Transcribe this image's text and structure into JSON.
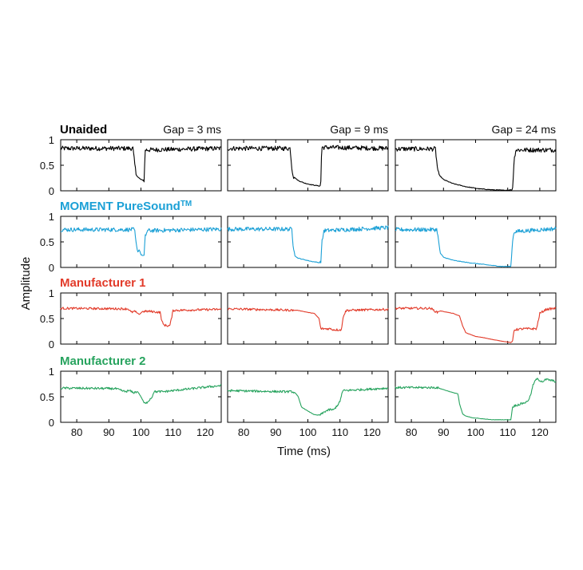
{
  "figure": {
    "xlabel": "Time (ms)",
    "ylabel": "Amplitude"
  },
  "columns": [
    {
      "label": "Gap = 3 ms",
      "gap_start": 98,
      "gap_end": 101
    },
    {
      "label": "Gap = 9 ms",
      "gap_start": 95,
      "gap_end": 104
    },
    {
      "label": "Gap = 24 ms",
      "gap_start": 88,
      "gap_end": 112
    }
  ],
  "rows": [
    {
      "label": "Unaided",
      "label_sup": "",
      "color": "#000000"
    },
    {
      "label": "MOMENT PureSound",
      "label_sup": "TM",
      "color": "#1ba0d6"
    },
    {
      "label": "Manufacturer 1",
      "label_sup": "",
      "color": "#e23b2a"
    },
    {
      "label": "Manufacturer 2",
      "label_sup": "",
      "color": "#27a35e"
    }
  ],
  "chart_data": {
    "type": "line",
    "layout": "4x3 small multiples",
    "xlim": [
      75,
      125
    ],
    "ylim": [
      0,
      1
    ],
    "xticks": [
      80,
      90,
      100,
      110,
      120
    ],
    "yticks": [
      0,
      0.5,
      1
    ],
    "ytick_labels": [
      "0",
      "0.5",
      "1"
    ],
    "grid": false,
    "panels": [
      {
        "row": 0,
        "col": 0,
        "series": "Unaided",
        "x": [
          75,
          97.5,
          98,
          98.5,
          99,
          100,
          101,
          101.3,
          125
        ],
        "y": [
          0.83,
          0.83,
          0.55,
          0.32,
          0.27,
          0.22,
          0.2,
          0.8,
          0.83
        ]
      },
      {
        "row": 0,
        "col": 1,
        "series": "Unaided",
        "x": [
          75,
          94.5,
          95,
          95.5,
          97,
          99,
          101,
          103,
          104,
          104.3,
          125
        ],
        "y": [
          0.83,
          0.83,
          0.45,
          0.28,
          0.2,
          0.15,
          0.12,
          0.1,
          0.09,
          0.85,
          0.83
        ]
      },
      {
        "row": 0,
        "col": 2,
        "series": "Unaided",
        "x": [
          75,
          87.5,
          88,
          88.5,
          90,
          93,
          97,
          101,
          105,
          109,
          111.5,
          112,
          112.5,
          125
        ],
        "y": [
          0.82,
          0.82,
          0.5,
          0.32,
          0.22,
          0.14,
          0.08,
          0.04,
          0.02,
          0.01,
          0.02,
          0.6,
          0.8,
          0.8
        ]
      },
      {
        "row": 1,
        "col": 0,
        "series": "MOMENT PureSound",
        "x": [
          75,
          98,
          98.4,
          99,
          99.5,
          100,
          101,
          101.3,
          102,
          125
        ],
        "y": [
          0.74,
          0.74,
          0.5,
          0.3,
          0.35,
          0.25,
          0.22,
          0.6,
          0.72,
          0.75
        ]
      },
      {
        "row": 1,
        "col": 1,
        "series": "MOMENT PureSound",
        "x": [
          75,
          95,
          95.4,
          96,
          97,
          99,
          101,
          103,
          104,
          104.4,
          105,
          125
        ],
        "y": [
          0.75,
          0.75,
          0.45,
          0.22,
          0.18,
          0.15,
          0.12,
          0.1,
          0.09,
          0.5,
          0.72,
          0.78
        ]
      },
      {
        "row": 1,
        "col": 2,
        "series": "MOMENT PureSound",
        "x": [
          75,
          88,
          88.5,
          89,
          90,
          93,
          97,
          101,
          105,
          108,
          111,
          111.5,
          112,
          125
        ],
        "y": [
          0.74,
          0.74,
          0.5,
          0.28,
          0.2,
          0.14,
          0.1,
          0.07,
          0.04,
          0.02,
          0.02,
          0.5,
          0.7,
          0.76
        ]
      },
      {
        "row": 2,
        "col": 0,
        "series": "Manufacturer 1",
        "x": [
          75,
          96,
          97,
          98,
          99.5,
          100.5,
          103,
          106,
          106.5,
          107,
          108,
          109,
          109.5,
          110,
          125
        ],
        "y": [
          0.7,
          0.69,
          0.62,
          0.64,
          0.58,
          0.64,
          0.64,
          0.62,
          0.45,
          0.38,
          0.36,
          0.36,
          0.5,
          0.66,
          0.68
        ]
      },
      {
        "row": 2,
        "col": 1,
        "series": "Manufacturer 1",
        "x": [
          75,
          97,
          100,
          102,
          103.5,
          104,
          105,
          107,
          108,
          110.5,
          111,
          112,
          125
        ],
        "y": [
          0.69,
          0.66,
          0.62,
          0.6,
          0.5,
          0.3,
          0.3,
          0.3,
          0.28,
          0.28,
          0.55,
          0.66,
          0.68
        ]
      },
      {
        "row": 2,
        "col": 2,
        "series": "Manufacturer 1",
        "x": [
          75,
          86,
          88,
          89,
          93,
          95,
          96,
          97,
          100,
          103,
          106,
          109,
          111,
          111.5,
          112,
          115,
          119,
          120,
          122,
          125
        ],
        "y": [
          0.7,
          0.7,
          0.62,
          0.65,
          0.6,
          0.55,
          0.35,
          0.22,
          0.15,
          0.12,
          0.08,
          0.05,
          0.03,
          0.05,
          0.28,
          0.3,
          0.3,
          0.6,
          0.68,
          0.7
        ]
      },
      {
        "row": 3,
        "col": 0,
        "series": "Manufacturer 2",
        "x": [
          75,
          92,
          95,
          96.5,
          97.5,
          99,
          100,
          101,
          101.5,
          102,
          103.5,
          104,
          107,
          125
        ],
        "y": [
          0.67,
          0.66,
          0.6,
          0.62,
          0.58,
          0.6,
          0.5,
          0.38,
          0.36,
          0.4,
          0.5,
          0.6,
          0.6,
          0.72
        ]
      },
      {
        "row": 3,
        "col": 1,
        "series": "Manufacturer 2",
        "x": [
          75,
          92,
          95,
          96,
          97,
          98,
          100,
          102,
          103,
          104,
          105.5,
          107,
          108,
          110,
          110.5,
          111,
          125
        ],
        "y": [
          0.62,
          0.6,
          0.6,
          0.58,
          0.5,
          0.3,
          0.22,
          0.15,
          0.14,
          0.15,
          0.22,
          0.25,
          0.24,
          0.4,
          0.55,
          0.62,
          0.67
        ]
      },
      {
        "row": 3,
        "col": 2,
        "series": "Manufacturer 2",
        "x": [
          75,
          88,
          91,
          93,
          94.5,
          95,
          96,
          97,
          99,
          102,
          105,
          108,
          111,
          111.5,
          112,
          114,
          116,
          117,
          118,
          119,
          120,
          121,
          122,
          125
        ],
        "y": [
          0.68,
          0.68,
          0.62,
          0.58,
          0.56,
          0.36,
          0.16,
          0.12,
          0.09,
          0.07,
          0.05,
          0.05,
          0.05,
          0.3,
          0.32,
          0.36,
          0.4,
          0.5,
          0.75,
          0.85,
          0.82,
          0.8,
          0.84,
          0.8
        ]
      }
    ]
  }
}
